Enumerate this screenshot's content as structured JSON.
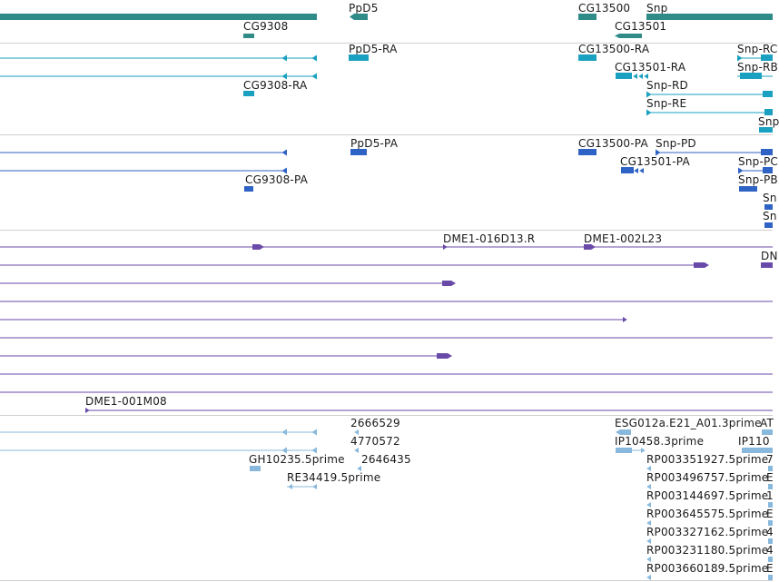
{
  "tracks": {
    "gene_span": {
      "color": "#2e8b87",
      "labels": [
        "PpD5",
        "CG13500",
        "Snp",
        "CG9308",
        "CG13501"
      ]
    },
    "transcripts": {
      "color": "#1aa0c0",
      "labels": [
        "PpD5-RA",
        "CG13500-RA",
        "Snp-RC",
        "CG13501-RA",
        "Snp-RB",
        "CG9308-RA",
        "Snp-RD",
        "Snp-RE",
        "Snp"
      ]
    },
    "protein_coding": {
      "color": "#2e62c4",
      "labels": [
        "PpD5-PA",
        "CG13500-PA",
        "Snp-PD",
        "CG13501-PA",
        "Snp-PC",
        "CG9308-PA",
        "Snp-PB",
        "Sn",
        "Sn"
      ]
    },
    "bac_ends": {
      "color": "#6a4aa8",
      "labels": [
        "DME1-016D13.R",
        "DME1-002L23",
        "DN",
        "DME1-001M08"
      ]
    },
    "est_alignments": {
      "color": "#88b8dc",
      "labels": [
        "2666529",
        "4770572",
        "GH10235.5prime",
        "2646435",
        "RE34419.5prime",
        "ESG012a.E21_A01.3prime",
        "AT",
        "IP10458.3prime",
        "IP110",
        "RP003351927.5prime",
        "7",
        "RP003496757.5prime",
        "E",
        "RP003144697.5prime",
        "1",
        "RP003645575.5prime",
        "E",
        "RP003327162.5prime",
        "4",
        "RP003231180.5prime",
        "4",
        "RP003660189.5prime",
        "E"
      ]
    }
  }
}
